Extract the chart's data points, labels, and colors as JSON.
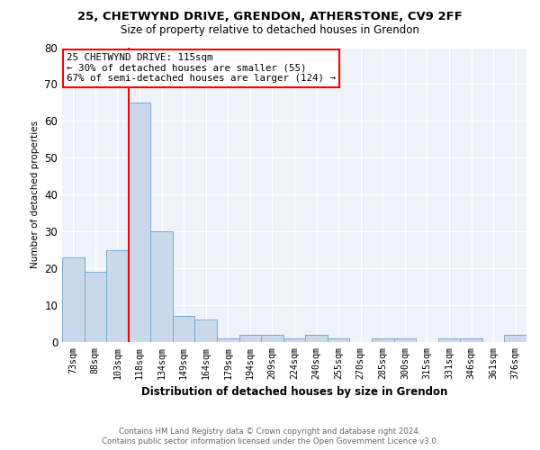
{
  "title_line1": "25, CHETWYND DRIVE, GRENDON, ATHERSTONE, CV9 2FF",
  "title_line2": "Size of property relative to detached houses in Grendon",
  "xlabel": "Distribution of detached houses by size in Grendon",
  "ylabel": "Number of detached properties",
  "categories": [
    "73sqm",
    "88sqm",
    "103sqm",
    "118sqm",
    "134sqm",
    "149sqm",
    "164sqm",
    "179sqm",
    "194sqm",
    "209sqm",
    "224sqm",
    "240sqm",
    "255sqm",
    "270sqm",
    "285sqm",
    "300sqm",
    "315sqm",
    "331sqm",
    "346sqm",
    "361sqm",
    "376sqm"
  ],
  "values": [
    23,
    19,
    25,
    65,
    30,
    7,
    6,
    1,
    2,
    2,
    1,
    2,
    1,
    0,
    1,
    1,
    0,
    1,
    1,
    0,
    2
  ],
  "bar_color": "#c9d9eb",
  "bar_edge_color": "#7aabcf",
  "vline_x": 2.5,
  "vline_color": "red",
  "annotation_text_line1": "25 CHETWYND DRIVE: 115sqm",
  "annotation_text_line2": "← 30% of detached houses are smaller (55)",
  "annotation_text_line3": "67% of semi-detached houses are larger (124) →",
  "ylim": [
    0,
    80
  ],
  "yticks": [
    0,
    10,
    20,
    30,
    40,
    50,
    60,
    70,
    80
  ],
  "footnote1": "Contains HM Land Registry data © Crown copyright and database right 2024.",
  "footnote2": "Contains public sector information licensed under the Open Government Licence v3.0.",
  "bg_color": "#eef2f9",
  "grid_color": "#ffffff",
  "title_fontsize": 9.5,
  "subtitle_fontsize": 8.5
}
